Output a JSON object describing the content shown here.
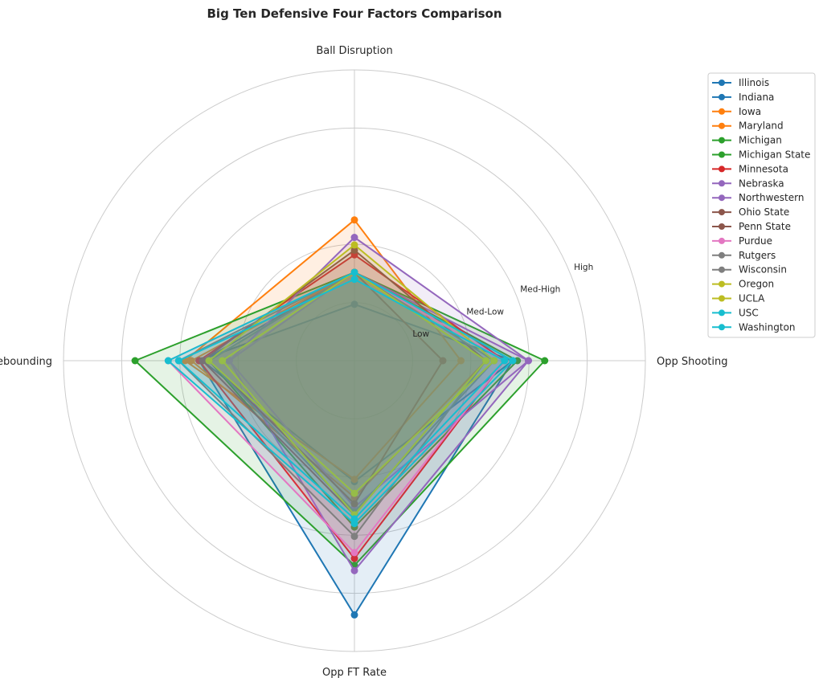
{
  "chart_data": {
    "type": "radar",
    "title": "Big Ten Defensive Four Factors Comparison",
    "axes": [
      "Ball Disruption",
      "Opp Shooting",
      "Opp FT Rate",
      "Def Rebounding"
    ],
    "radial_tick_labels": [
      "Low",
      "Med-Low",
      "Med-High",
      "High"
    ],
    "radial_ticks": [
      1,
      2,
      3,
      4
    ],
    "rlim": [
      0,
      5
    ],
    "grid": true,
    "legend_position": "right",
    "series": [
      {
        "name": "Illinois",
        "color": "#1f77b4",
        "values": [
          0.97,
          2.72,
          4.37,
          2.67
        ]
      },
      {
        "name": "Indiana",
        "color": "#1f77b4",
        "values": [
          1.52,
          2.72,
          2.08,
          2.61
        ]
      },
      {
        "name": "Iowa",
        "color": "#ff7f0e",
        "values": [
          2.42,
          1.83,
          2.04,
          2.91
        ]
      },
      {
        "name": "Maryland",
        "color": "#ff7f0e",
        "values": [
          1.52,
          2.26,
          2.35,
          2.8
        ]
      },
      {
        "name": "Michigan",
        "color": "#2ca02c",
        "values": [
          1.52,
          3.27,
          3.52,
          3.77
        ]
      },
      {
        "name": "Michigan State",
        "color": "#2ca02c",
        "values": [
          1.52,
          2.8,
          2.86,
          2.5
        ]
      },
      {
        "name": "Minnesota",
        "color": "#d62728",
        "values": [
          1.82,
          2.58,
          3.4,
          2.67
        ]
      },
      {
        "name": "Nebraska",
        "color": "#9467bd",
        "values": [
          2.12,
          2.99,
          3.61,
          2.15
        ]
      },
      {
        "name": "Northwestern",
        "color": "#9467bd",
        "values": [
          1.52,
          2.99,
          2.52,
          2.15
        ]
      },
      {
        "name": "Ohio State",
        "color": "#8c564b",
        "values": [
          1.52,
          1.52,
          2.46,
          2.5
        ]
      },
      {
        "name": "Penn State",
        "color": "#8c564b",
        "values": [
          1.9,
          2.26,
          2.65,
          2.61
        ]
      },
      {
        "name": "Purdue",
        "color": "#e377c2",
        "values": [
          1.52,
          2.58,
          3.3,
          3.2
        ]
      },
      {
        "name": "Rutgers",
        "color": "#7f7f7f",
        "values": [
          1.52,
          2.4,
          2.6,
          2.5
        ]
      },
      {
        "name": "Wisconsin",
        "color": "#7f7f7f",
        "values": [
          1.52,
          2.26,
          3.02,
          3.02
        ]
      },
      {
        "name": "Oregon",
        "color": "#bcbd22",
        "values": [
          1.99,
          2.4,
          2.28,
          2.5
        ]
      },
      {
        "name": "UCLA",
        "color": "#bcbd22",
        "values": [
          1.52,
          2.26,
          2.65,
          2.27
        ]
      },
      {
        "name": "USC",
        "color": "#17becf",
        "values": [
          1.52,
          2.72,
          2.8,
          3.2
        ]
      },
      {
        "name": "Washington",
        "color": "#17becf",
        "values": [
          1.4,
          2.58,
          2.72,
          3.02
        ]
      }
    ]
  }
}
